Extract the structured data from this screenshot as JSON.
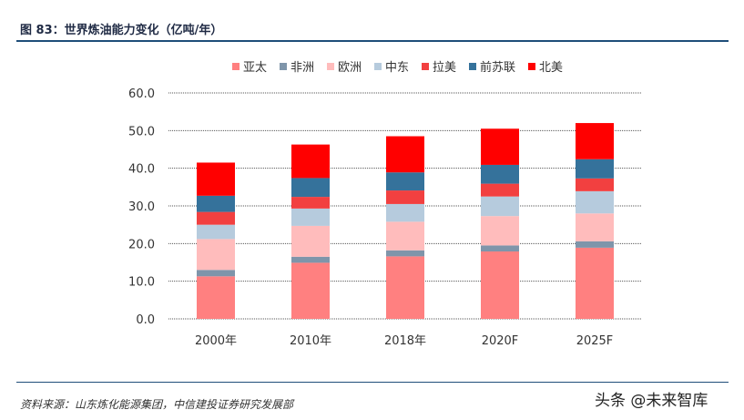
{
  "header": {
    "title": "图 83：世界炼油能力变化（亿吨/年）"
  },
  "footer": {
    "source": "资料来源：山东炼化能源集团，中信建投证券研究发展部"
  },
  "watermark": "头条 @未来智库",
  "chart_data": {
    "type": "bar",
    "stacked": true,
    "categories": [
      "2000年",
      "2010年",
      "2018年",
      "2020F",
      "2025F"
    ],
    "ylim": [
      0,
      60
    ],
    "yticks": [
      "0.0",
      "10.0",
      "20.0",
      "30.0",
      "40.0",
      "50.0",
      "60.0"
    ],
    "grid": true,
    "legend_position": "top",
    "series": [
      {
        "name": "亚太",
        "color": "#ff8080",
        "values": [
          11.3,
          14.9,
          16.6,
          17.9,
          18.9
        ]
      },
      {
        "name": "非洲",
        "color": "#7f95aa",
        "values": [
          1.7,
          1.6,
          1.6,
          1.6,
          1.7
        ]
      },
      {
        "name": "欧洲",
        "color": "#ffbcbc",
        "values": [
          8.2,
          8.2,
          7.6,
          7.8,
          7.4
        ]
      },
      {
        "name": "中东",
        "color": "#b6cbdd",
        "values": [
          3.8,
          4.6,
          4.7,
          5.2,
          5.9
        ]
      },
      {
        "name": "拉美",
        "color": "#f24040",
        "values": [
          3.4,
          3.1,
          3.6,
          3.4,
          3.4
        ]
      },
      {
        "name": "前苏联",
        "color": "#35729b",
        "values": [
          4.3,
          5.0,
          4.8,
          5.0,
          5.1
        ]
      },
      {
        "name": "北美",
        "color": "#ff0000",
        "values": [
          8.8,
          8.9,
          9.6,
          9.6,
          9.6
        ]
      }
    ]
  }
}
